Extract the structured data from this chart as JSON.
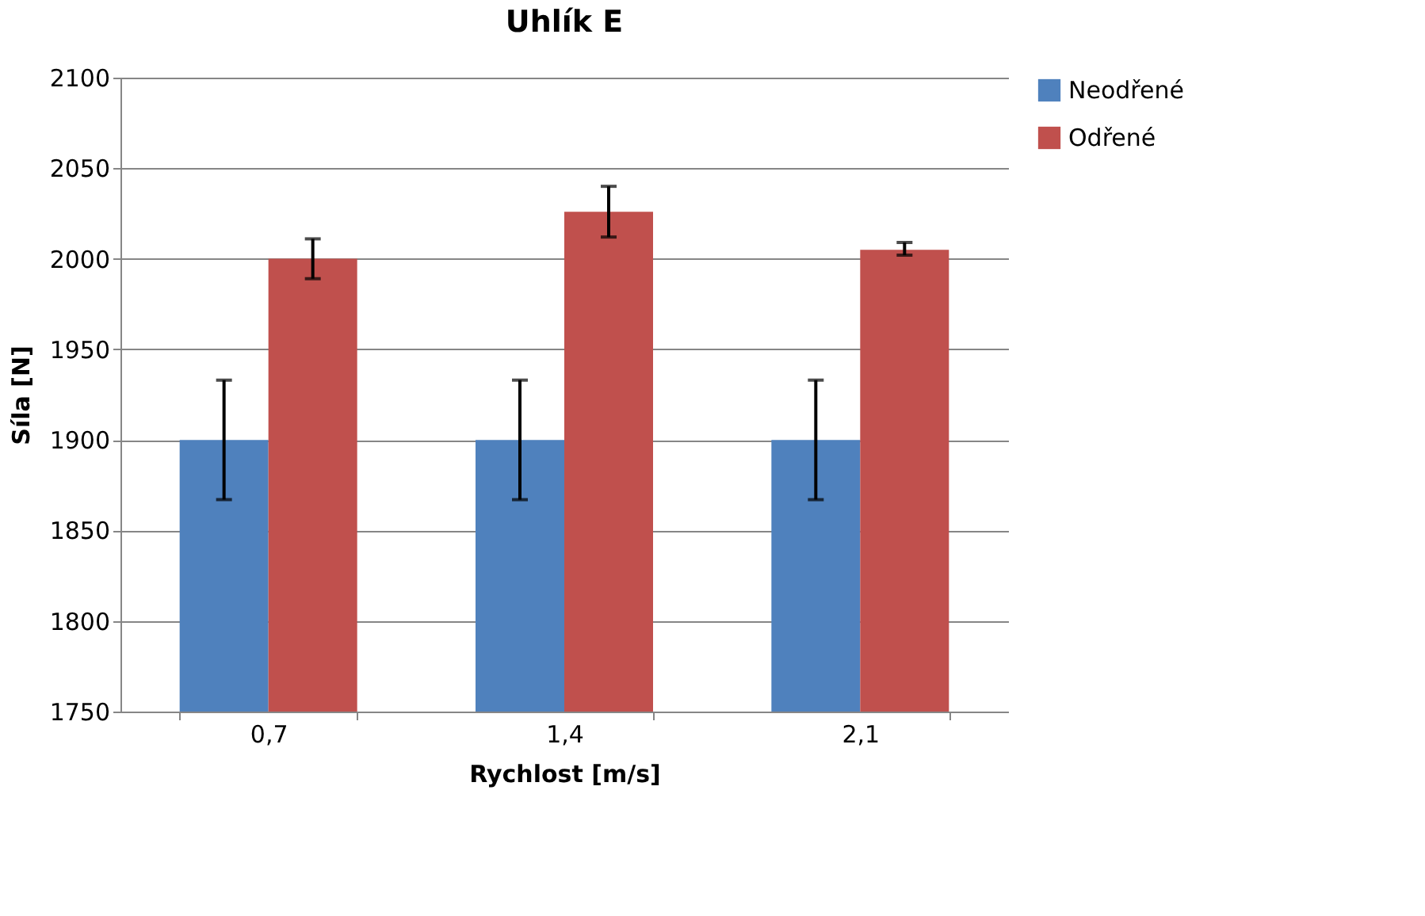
{
  "chart_data": {
    "type": "bar",
    "title": "Uhlík E",
    "xlabel": "Rychlost  [m/s]",
    "ylabel": "Síla [N]",
    "categories": [
      "0,7",
      "1,4",
      "2,1"
    ],
    "series": [
      {
        "name": "Neodřené",
        "color": "#4f81bd",
        "values": [
          1900,
          1900,
          1900
        ],
        "errors": [
          33,
          33,
          33
        ]
      },
      {
        "name": "Odřené",
        "color": "#c0504d",
        "values": [
          2000,
          2026,
          2005
        ],
        "errors": [
          11,
          14,
          [
            2002,
            2009
          ]
        ]
      }
    ],
    "ylim": [
      1750,
      2100
    ],
    "yticks": [
      1750,
      1800,
      1850,
      1900,
      1950,
      2000,
      2050,
      2100
    ],
    "grid": "y",
    "legend": "right"
  }
}
